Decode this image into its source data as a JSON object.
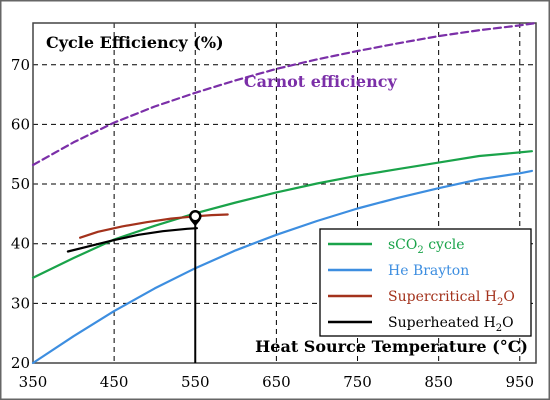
{
  "chart_data": {
    "type": "line",
    "ylabel": "Cycle Efficiency (%)",
    "xlabel": "Heat Source Temperature (°C)",
    "xlim": [
      350,
      970
    ],
    "ylim": [
      20,
      77
    ],
    "xticks": [
      350,
      450,
      550,
      650,
      750,
      850,
      950
    ],
    "yticks": [
      20,
      30,
      40,
      50,
      60,
      70
    ],
    "grid": true,
    "legend_position": "bottom-right",
    "series": [
      {
        "name": "Carnot efficiency",
        "legend": false,
        "color": "#7b2fa8",
        "dash": true,
        "x": [
          350,
          400,
          450,
          500,
          550,
          600,
          650,
          700,
          750,
          800,
          850,
          900,
          950,
          970
        ],
        "y": [
          53.2,
          57.0,
          60.3,
          63.0,
          65.3,
          67.4,
          69.3,
          70.9,
          72.3,
          73.6,
          74.8,
          75.8,
          76.6,
          77.0
        ]
      },
      {
        "name": "sCO2 cycle",
        "color": "#1aa34a",
        "x": [
          350,
          400,
          450,
          500,
          550,
          600,
          650,
          700,
          750,
          800,
          850,
          900,
          950,
          965
        ],
        "y": [
          34.3,
          37.6,
          40.7,
          43.0,
          45.1,
          46.9,
          48.6,
          50.1,
          51.4,
          52.5,
          53.6,
          54.7,
          55.3,
          55.5
        ]
      },
      {
        "name": "He Brayton",
        "color": "#3d8ee0",
        "x": [
          350,
          400,
          450,
          500,
          550,
          600,
          650,
          700,
          750,
          800,
          850,
          900,
          950,
          965
        ],
        "y": [
          20.0,
          24.5,
          28.7,
          32.5,
          35.9,
          38.9,
          41.5,
          43.8,
          45.9,
          47.7,
          49.3,
          50.8,
          51.8,
          52.2
        ]
      },
      {
        "name": "Supercritical H2O",
        "color": "#a3321c",
        "x": [
          408,
          430,
          460,
          490,
          520,
          550,
          570,
          590
        ],
        "y": [
          41.0,
          42.0,
          42.9,
          43.6,
          44.2,
          44.6,
          44.8,
          44.9
        ]
      },
      {
        "name": "Superheated H2O",
        "color": "#000000",
        "x": [
          393,
          420,
          450,
          480,
          510,
          540,
          552
        ],
        "y": [
          38.7,
          39.6,
          40.6,
          41.5,
          42.1,
          42.5,
          42.6
        ]
      }
    ],
    "annotations": [
      {
        "text": "Carnot efficiency",
        "x": 610,
        "y": 66.3,
        "color": "#7b2fa8"
      }
    ],
    "marker": {
      "x": 550,
      "y": 44.6,
      "line_to_y": 20
    },
    "legend": [
      {
        "parts": [
          [
            "sCO",
            0
          ],
          [
            "2",
            1
          ],
          [
            " cycle",
            0
          ]
        ],
        "color": "#1aa34a"
      },
      {
        "parts": [
          [
            "He Brayton",
            0
          ]
        ],
        "color": "#3d8ee0"
      },
      {
        "parts": [
          [
            "Supercritical H",
            0
          ],
          [
            "2",
            1
          ],
          [
            "O",
            0
          ]
        ],
        "color": "#a3321c"
      },
      {
        "parts": [
          [
            "Superheated H",
            0
          ],
          [
            "2",
            1
          ],
          [
            "O",
            0
          ]
        ],
        "color": "#000000"
      }
    ],
    "frame_color": "#444444",
    "grid_color": "#000000"
  }
}
